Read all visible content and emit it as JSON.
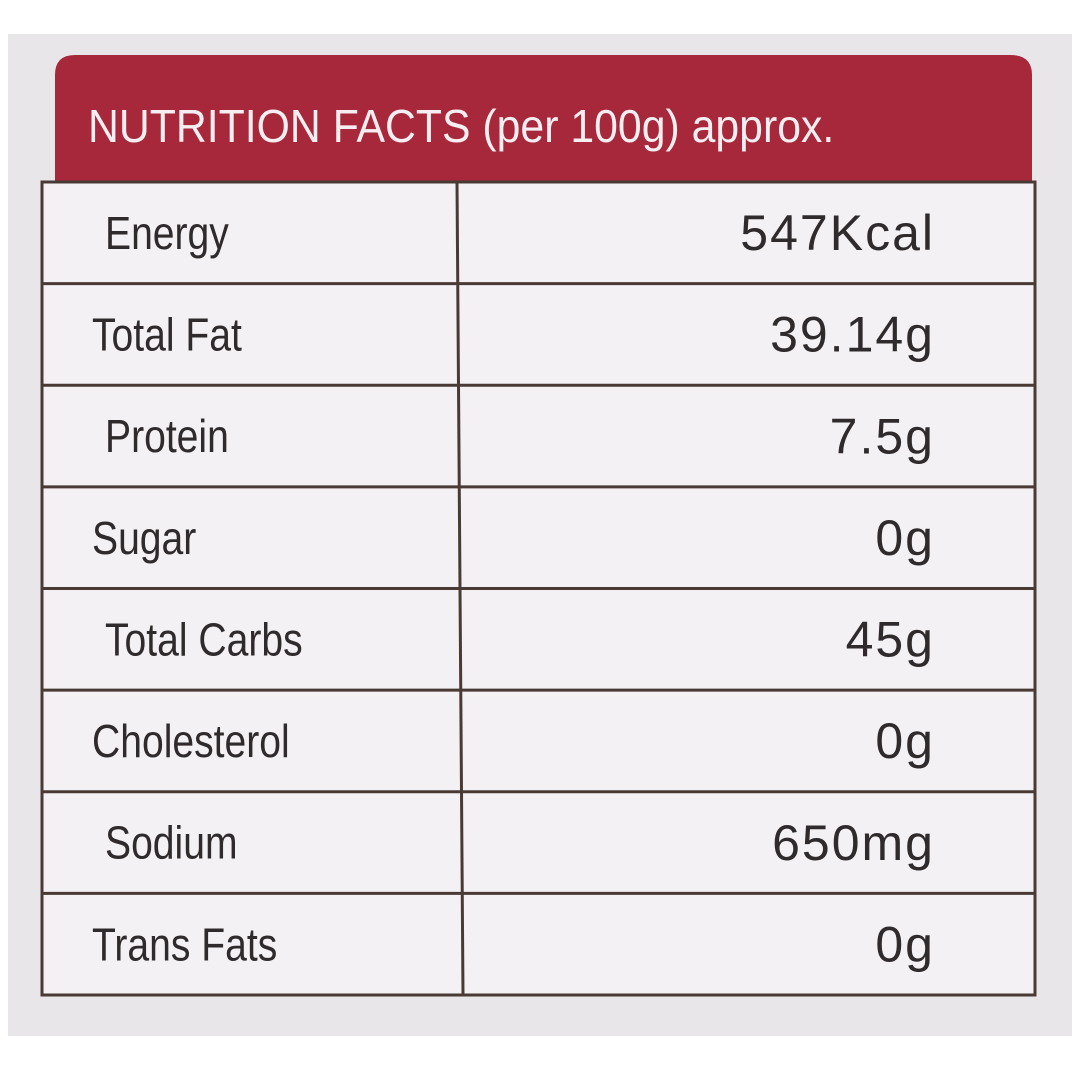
{
  "header": {
    "title": "NUTRITION FACTS (per 100g) approx."
  },
  "table": {
    "rows": [
      [
        "Energy",
        "547Kcal"
      ],
      [
        "Total Fat",
        "39.14g"
      ],
      [
        "Protein",
        "7.5g"
      ],
      [
        "Sugar",
        "0g"
      ],
      [
        "Total Carbs",
        "45g"
      ],
      [
        "Cholesterol",
        "0g"
      ],
      [
        "Sodium",
        "650mg"
      ],
      [
        "Trans Fats",
        "0g"
      ]
    ]
  }
}
